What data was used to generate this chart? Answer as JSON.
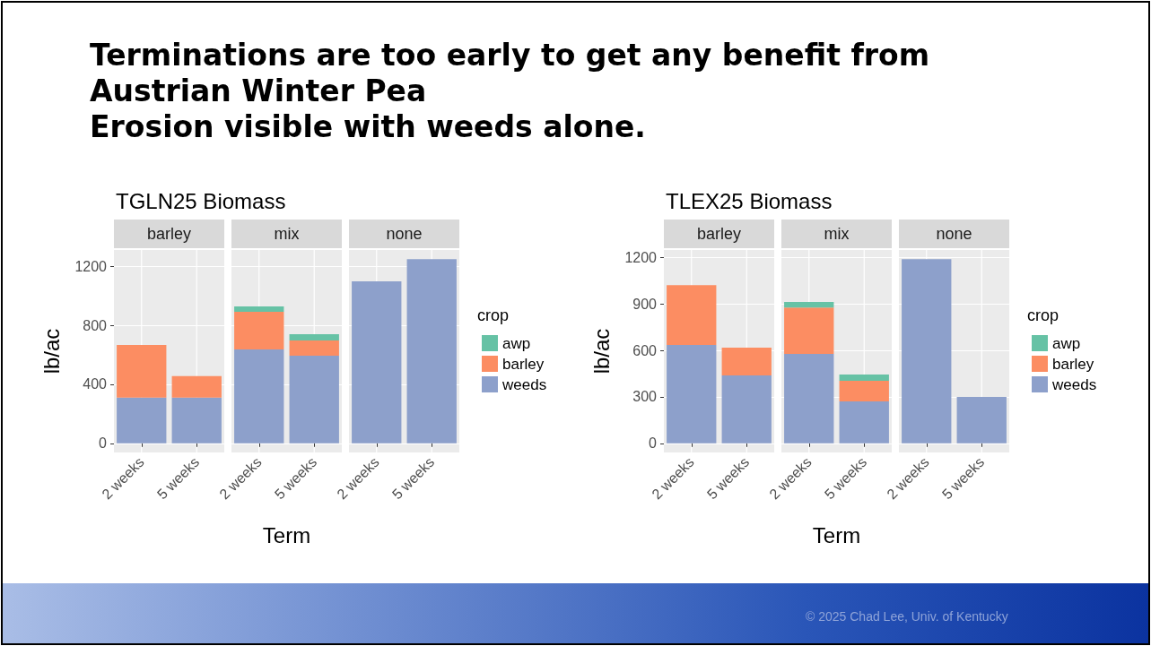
{
  "chart_data": [
    {
      "type": "bar",
      "title": "TGLN25 Biomass",
      "xlabel": "Term",
      "ylabel": "lb/ac",
      "legend_title": "crop",
      "legend": "right",
      "grid": true,
      "stacked": true,
      "categories": [
        "2 weeks",
        "5 weeks",
        "2 weeks",
        "5 weeks",
        "2 weeks",
        "5 weeks"
      ],
      "ylim": [
        -62,
        1310
      ],
      "yticks": [
        0,
        400,
        800,
        1200
      ],
      "series": [
        {
          "name": "weeds",
          "color": "#8da0cb",
          "values": [
            310,
            310,
            636,
            594,
            1097,
            1248
          ]
        },
        {
          "name": "barley",
          "color": "#fc8d62",
          "values": [
            357,
            145,
            255,
            103,
            0,
            0
          ]
        },
        {
          "name": "awp",
          "color": "#66c2a5",
          "values": [
            0,
            0,
            36,
            42,
            0,
            0
          ]
        }
      ],
      "annotations": [
        "barley",
        "mix",
        "none",
        "Terminations are too early to get any benefit from Austrian Winter Pea",
        "Erosion visible with weeds alone.",
        "© 2025 Chad Lee, Univ. of Kentucky"
      ]
    },
    {
      "type": "bar",
      "title": "TLEX25 Biomass",
      "xlabel": "Term",
      "ylabel": "lb/ac",
      "legend_title": "crop",
      "legend": "right",
      "grid": true,
      "stacked": true,
      "categories": [
        "2 weeks",
        "5 weeks",
        "2 weeks",
        "5 weeks",
        "2 weeks",
        "5 weeks"
      ],
      "ylim": [
        -59,
        1248
      ],
      "yticks": [
        0,
        300,
        600,
        900,
        1200
      ],
      "series": [
        {
          "name": "weeds",
          "color": "#8da0cb",
          "values": [
            635,
            438,
            577,
            271,
            1189,
            300
          ]
        },
        {
          "name": "barley",
          "color": "#fc8d62",
          "values": [
            386,
            179,
            300,
            133,
            0,
            0
          ]
        },
        {
          "name": "awp",
          "color": "#66c2a5",
          "values": [
            0,
            0,
            35,
            40,
            0,
            0
          ]
        }
      ],
      "annotations": [
        "barley",
        "mix",
        "none"
      ]
    }
  ]
}
